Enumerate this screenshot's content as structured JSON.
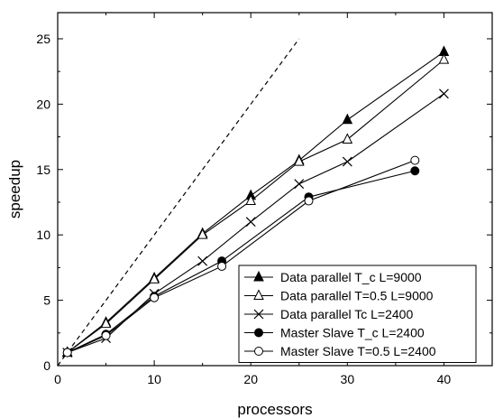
{
  "chart_data": {
    "type": "line",
    "title": "",
    "xlabel": "processors",
    "ylabel": "speedup",
    "xlim": [
      0,
      45
    ],
    "ylim": [
      0,
      27
    ],
    "x_ticks": [
      0,
      10,
      20,
      30,
      40
    ],
    "y_ticks": [
      0,
      5,
      10,
      15,
      20,
      25
    ],
    "grid": false,
    "legend_position": "bottom-right",
    "reference_line": {
      "style": "dashed",
      "x": [
        0,
        25
      ],
      "y": [
        0,
        25
      ]
    },
    "series": [
      {
        "name": "Data parallel T_c L=9000",
        "marker": "filled-triangle",
        "x": [
          1,
          5,
          10,
          15,
          20,
          25,
          30,
          40
        ],
        "y": [
          1,
          3.3,
          6.7,
          10.1,
          13.0,
          15.7,
          18.8,
          24.0
        ]
      },
      {
        "name": "Data parallel T=0.5 L=9000",
        "marker": "open-triangle",
        "x": [
          1,
          5,
          10,
          15,
          20,
          25,
          30,
          40
        ],
        "y": [
          1,
          3.2,
          6.6,
          10.0,
          12.6,
          15.6,
          17.3,
          23.4
        ]
      },
      {
        "name": "Data parallel Tc L=2400",
        "marker": "cross",
        "x": [
          1,
          5,
          10,
          15,
          20,
          25,
          30,
          40
        ],
        "y": [
          1,
          2.1,
          5.5,
          8.0,
          11.0,
          13.9,
          15.6,
          20.8
        ]
      },
      {
        "name": "Master Slave  T_c L=2400",
        "marker": "filled-circle",
        "x": [
          1,
          5,
          10,
          17,
          26,
          37
        ],
        "y": [
          1,
          2.4,
          5.3,
          8.0,
          12.9,
          14.9
        ]
      },
      {
        "name": "Master Slave T=0.5 L=2400",
        "marker": "open-circle",
        "x": [
          1,
          5,
          10,
          17,
          26,
          37
        ],
        "y": [
          1,
          2.3,
          5.2,
          7.6,
          12.6,
          15.7
        ]
      }
    ]
  }
}
